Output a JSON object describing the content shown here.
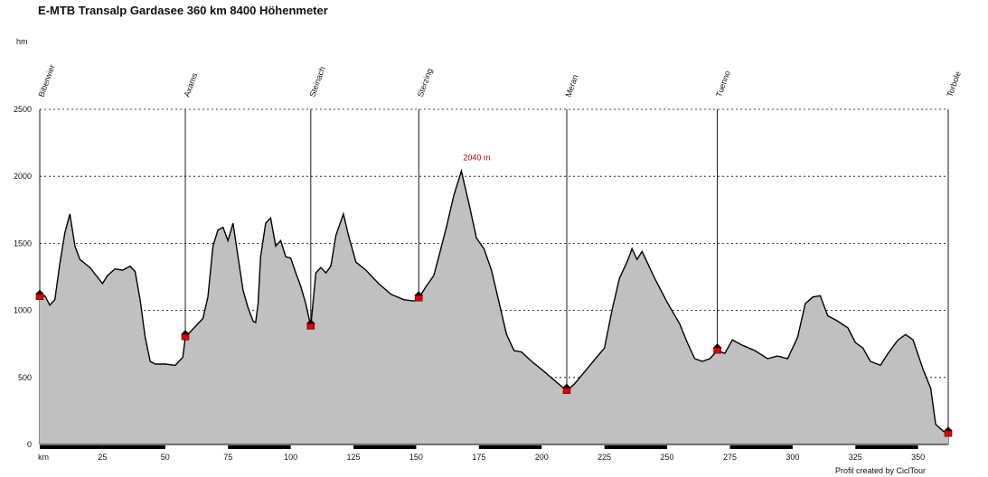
{
  "title": "E-MTB Transalp Gardasee 360 km 8400 Höhenmeter",
  "unit_top": "hm",
  "unit_bottom": "km",
  "credit": "Profil created by CiclTour",
  "chart_data": {
    "type": "area",
    "title": "E-MTB Transalp Gardasee 360 km 8400 Höhenmeter",
    "xlabel": "km",
    "ylabel": "hm",
    "xlim": [
      0,
      362
    ],
    "ylim": [
      0,
      2500
    ],
    "x_ticks": [
      "25",
      "50",
      "75",
      "100",
      "125",
      "150",
      "175",
      "200",
      "225",
      "250",
      "275",
      "300",
      "325",
      "350"
    ],
    "y_ticks": [
      {
        "value": 0,
        "label": "0"
      },
      {
        "value": 500,
        "label": "500"
      },
      {
        "value": 1000,
        "label": "1000"
      },
      {
        "value": 1500,
        "label": "1500"
      },
      {
        "value": 2000,
        "label": "2000"
      },
      {
        "value": 2500,
        "label": "2500"
      }
    ],
    "grid": true,
    "fill_color": "#c0c0c0",
    "line_color": "#000000",
    "marker_color": "#e00000",
    "places": [
      {
        "name": "Biberwier",
        "km": 0
      },
      {
        "name": "Axams",
        "km": 58
      },
      {
        "name": "Steinach",
        "km": 108
      },
      {
        "name": "Sterzing",
        "km": 151
      },
      {
        "name": "Meran",
        "km": 210
      },
      {
        "name": "Tuenno",
        "km": 270
      },
      {
        "name": "Torbole",
        "km": 362
      }
    ],
    "peak_label": {
      "text": "2040 m",
      "km": 168,
      "elevation": 2040
    },
    "profile": [
      [
        0,
        1100
      ],
      [
        2,
        1110
      ],
      [
        4,
        1040
      ],
      [
        6,
        1080
      ],
      [
        8,
        1350
      ],
      [
        10,
        1580
      ],
      [
        12,
        1720
      ],
      [
        14,
        1480
      ],
      [
        16,
        1380
      ],
      [
        20,
        1320
      ],
      [
        25,
        1200
      ],
      [
        27,
        1260
      ],
      [
        30,
        1310
      ],
      [
        33,
        1300
      ],
      [
        36,
        1330
      ],
      [
        38,
        1290
      ],
      [
        40,
        1080
      ],
      [
        42,
        800
      ],
      [
        44,
        620
      ],
      [
        46,
        600
      ],
      [
        50,
        600
      ],
      [
        54,
        590
      ],
      [
        57,
        650
      ],
      [
        58,
        800
      ],
      [
        62,
        880
      ],
      [
        65,
        940
      ],
      [
        67,
        1100
      ],
      [
        69,
        1480
      ],
      [
        71,
        1600
      ],
      [
        73,
        1620
      ],
      [
        75,
        1520
      ],
      [
        77,
        1650
      ],
      [
        79,
        1400
      ],
      [
        81,
        1150
      ],
      [
        83,
        1020
      ],
      [
        85,
        920
      ],
      [
        86,
        910
      ],
      [
        87,
        1050
      ],
      [
        88,
        1400
      ],
      [
        90,
        1650
      ],
      [
        92,
        1690
      ],
      [
        94,
        1480
      ],
      [
        96,
        1520
      ],
      [
        98,
        1400
      ],
      [
        100,
        1390
      ],
      [
        102,
        1280
      ],
      [
        104,
        1180
      ],
      [
        106,
        1050
      ],
      [
        108,
        880
      ],
      [
        110,
        1280
      ],
      [
        112,
        1320
      ],
      [
        114,
        1280
      ],
      [
        116,
        1330
      ],
      [
        118,
        1560
      ],
      [
        121,
        1720
      ],
      [
        123,
        1560
      ],
      [
        126,
        1360
      ],
      [
        130,
        1300
      ],
      [
        135,
        1200
      ],
      [
        140,
        1120
      ],
      [
        145,
        1080
      ],
      [
        149,
        1070
      ],
      [
        151,
        1090
      ],
      [
        154,
        1180
      ],
      [
        157,
        1260
      ],
      [
        159,
        1400
      ],
      [
        162,
        1620
      ],
      [
        165,
        1860
      ],
      [
        168,
        2040
      ],
      [
        171,
        1800
      ],
      [
        174,
        1540
      ],
      [
        177,
        1460
      ],
      [
        180,
        1300
      ],
      [
        183,
        1060
      ],
      [
        186,
        820
      ],
      [
        189,
        700
      ],
      [
        192,
        690
      ],
      [
        196,
        620
      ],
      [
        200,
        560
      ],
      [
        205,
        480
      ],
      [
        210,
        400
      ],
      [
        213,
        450
      ],
      [
        217,
        540
      ],
      [
        221,
        630
      ],
      [
        225,
        720
      ],
      [
        228,
        1000
      ],
      [
        231,
        1240
      ],
      [
        234,
        1360
      ],
      [
        236,
        1460
      ],
      [
        238,
        1380
      ],
      [
        240,
        1440
      ],
      [
        242,
        1360
      ],
      [
        245,
        1240
      ],
      [
        250,
        1060
      ],
      [
        255,
        900
      ],
      [
        258,
        760
      ],
      [
        261,
        640
      ],
      [
        264,
        620
      ],
      [
        267,
        640
      ],
      [
        270,
        700
      ],
      [
        273,
        680
      ],
      [
        276,
        780
      ],
      [
        280,
        740
      ],
      [
        285,
        700
      ],
      [
        290,
        640
      ],
      [
        294,
        660
      ],
      [
        298,
        640
      ],
      [
        302,
        800
      ],
      [
        305,
        1050
      ],
      [
        308,
        1100
      ],
      [
        311,
        1110
      ],
      [
        314,
        960
      ],
      [
        318,
        920
      ],
      [
        322,
        870
      ],
      [
        325,
        760
      ],
      [
        328,
        720
      ],
      [
        331,
        620
      ],
      [
        335,
        590
      ],
      [
        338,
        680
      ],
      [
        342,
        780
      ],
      [
        345,
        820
      ],
      [
        348,
        780
      ],
      [
        352,
        560
      ],
      [
        355,
        420
      ],
      [
        357,
        150
      ],
      [
        360,
        100
      ],
      [
        362,
        80
      ]
    ]
  }
}
